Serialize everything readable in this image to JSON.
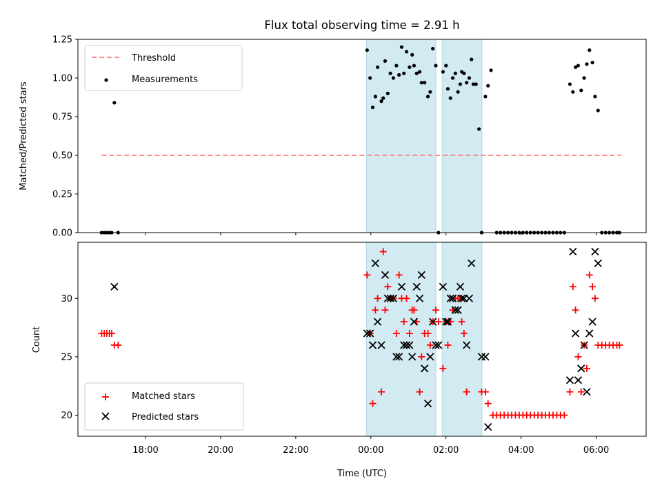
{
  "chart_data": [
    {
      "type": "scatter",
      "panel": "top",
      "title": "Flux total observing time = 2.91 h",
      "xlabel": "",
      "ylabel": "Matched/Predicted stars",
      "xlim": [
        16.2,
        31.33
      ],
      "ylim": [
        0,
        1.25
      ],
      "xticks": [
        18,
        20,
        22,
        24,
        26,
        28,
        30
      ],
      "yticks": [
        0,
        0.25,
        0.5,
        0.75,
        1.0,
        1.25
      ],
      "ytick_labels": [
        "0.00",
        "0.25",
        "0.50",
        "0.75",
        "1.00",
        "1.25"
      ],
      "legend": {
        "position": "top-left",
        "threshold_label": "Threshold",
        "measurements_label": "Measurements"
      },
      "threshold": {
        "value": 0.5,
        "x_range": [
          16.83,
          30.67
        ],
        "color": "#ff7f7f"
      },
      "observing_windows": [
        [
          23.88,
          25.73
        ],
        [
          25.9,
          26.96
        ]
      ],
      "window_color": "#add8e6",
      "measurements": [
        [
          16.83,
          0
        ],
        [
          16.9,
          0
        ],
        [
          16.97,
          0
        ],
        [
          17.04,
          0
        ],
        [
          17.1,
          0
        ],
        [
          17.17,
          0.84
        ],
        [
          17.27,
          0
        ],
        [
          23.9,
          1.18
        ],
        [
          23.98,
          1.0
        ],
        [
          24.05,
          0.81
        ],
        [
          24.12,
          0.88
        ],
        [
          24.18,
          1.07
        ],
        [
          24.28,
          0.85
        ],
        [
          24.33,
          0.87
        ],
        [
          24.38,
          1.11
        ],
        [
          24.45,
          0.9
        ],
        [
          24.52,
          1.03
        ],
        [
          24.6,
          1.0
        ],
        [
          24.68,
          1.08
        ],
        [
          24.75,
          1.02
        ],
        [
          24.82,
          1.2
        ],
        [
          24.88,
          1.03
        ],
        [
          24.95,
          1.17
        ],
        [
          25.03,
          1.07
        ],
        [
          25.1,
          1.15
        ],
        [
          25.15,
          1.08
        ],
        [
          25.22,
          1.03
        ],
        [
          25.3,
          1.04
        ],
        [
          25.35,
          0.97
        ],
        [
          25.43,
          0.97
        ],
        [
          25.52,
          0.88
        ],
        [
          25.58,
          0.91
        ],
        [
          25.65,
          1.19
        ],
        [
          25.73,
          1.08
        ],
        [
          25.8,
          0
        ],
        [
          25.92,
          1.04
        ],
        [
          26.0,
          1.08
        ],
        [
          26.05,
          0.93
        ],
        [
          26.12,
          0.87
        ],
        [
          26.18,
          1.0
        ],
        [
          26.25,
          1.03
        ],
        [
          26.32,
          0.91
        ],
        [
          26.38,
          0.96
        ],
        [
          26.42,
          1.04
        ],
        [
          26.48,
          1.03
        ],
        [
          26.55,
          0.97
        ],
        [
          26.62,
          1.0
        ],
        [
          26.68,
          1.12
        ],
        [
          26.73,
          0.96
        ],
        [
          26.8,
          0.96
        ],
        [
          26.88,
          0.67
        ],
        [
          26.95,
          0
        ],
        [
          27.05,
          0.88
        ],
        [
          27.12,
          0.95
        ],
        [
          27.2,
          1.05
        ],
        [
          27.35,
          0
        ],
        [
          27.45,
          0
        ],
        [
          27.55,
          0
        ],
        [
          27.65,
          0
        ],
        [
          27.75,
          0
        ],
        [
          27.85,
          0
        ],
        [
          27.95,
          0
        ],
        [
          28.05,
          0
        ],
        [
          28.15,
          0
        ],
        [
          28.25,
          0
        ],
        [
          28.35,
          0
        ],
        [
          28.45,
          0
        ],
        [
          28.55,
          0
        ],
        [
          28.65,
          0
        ],
        [
          28.75,
          0
        ],
        [
          28.85,
          0
        ],
        [
          28.95,
          0
        ],
        [
          29.05,
          0
        ],
        [
          29.15,
          0
        ],
        [
          29.3,
          0.96
        ],
        [
          29.38,
          0.91
        ],
        [
          29.45,
          1.07
        ],
        [
          29.52,
          1.08
        ],
        [
          29.6,
          0.92
        ],
        [
          29.68,
          1.0
        ],
        [
          29.75,
          1.09
        ],
        [
          29.82,
          1.18
        ],
        [
          29.9,
          1.1
        ],
        [
          29.97,
          0.88
        ],
        [
          30.05,
          0.79
        ],
        [
          30.15,
          0
        ],
        [
          30.25,
          0
        ],
        [
          30.35,
          0
        ],
        [
          30.45,
          0
        ],
        [
          30.55,
          0
        ],
        [
          30.62,
          0
        ]
      ]
    },
    {
      "type": "scatter",
      "panel": "bottom",
      "xlabel": "Time (UTC)",
      "ylabel": "Count",
      "xlim": [
        16.2,
        31.33
      ],
      "ylim": [
        18.2,
        34.8
      ],
      "xticks": [
        18,
        20,
        22,
        24,
        26,
        28,
        30
      ],
      "xtick_labels": [
        "18:00",
        "20:00",
        "22:00",
        "00:00",
        "02:00",
        "04:00",
        "06:00"
      ],
      "yticks": [
        20,
        25,
        30
      ],
      "legend": {
        "position": "bottom-left",
        "matched_label": "Matched stars",
        "predicted_label": "Predicted stars"
      },
      "observing_windows": [
        [
          23.88,
          25.73
        ],
        [
          25.9,
          26.96
        ]
      ],
      "series": [
        {
          "name": "Matched stars",
          "marker": "+",
          "color": "#ff0000",
          "points": [
            [
              16.83,
              27
            ],
            [
              16.9,
              27
            ],
            [
              16.97,
              27
            ],
            [
              17.04,
              27
            ],
            [
              17.1,
              27
            ],
            [
              17.17,
              26
            ],
            [
              17.27,
              26
            ],
            [
              23.9,
              32
            ],
            [
              23.98,
              27
            ],
            [
              24.05,
              21
            ],
            [
              24.12,
              29
            ],
            [
              24.18,
              30
            ],
            [
              24.28,
              22
            ],
            [
              24.33,
              34
            ],
            [
              24.38,
              29
            ],
            [
              24.45,
              31
            ],
            [
              24.52,
              30
            ],
            [
              24.6,
              30
            ],
            [
              24.68,
              27
            ],
            [
              24.75,
              32
            ],
            [
              24.82,
              30
            ],
            [
              24.88,
              28
            ],
            [
              24.95,
              30
            ],
            [
              25.03,
              27
            ],
            [
              25.1,
              29
            ],
            [
              25.15,
              29
            ],
            [
              25.22,
              28
            ],
            [
              25.3,
              22
            ],
            [
              25.35,
              25
            ],
            [
              25.43,
              27
            ],
            [
              25.52,
              27
            ],
            [
              25.58,
              26
            ],
            [
              25.65,
              28
            ],
            [
              25.73,
              29
            ],
            [
              25.8,
              28
            ],
            [
              25.92,
              24
            ],
            [
              26.0,
              28
            ],
            [
              26.05,
              26
            ],
            [
              26.12,
              28
            ],
            [
              26.18,
              29
            ],
            [
              26.25,
              30
            ],
            [
              26.32,
              30
            ],
            [
              26.38,
              30
            ],
            [
              26.42,
              28
            ],
            [
              26.48,
              27
            ],
            [
              26.55,
              22
            ],
            [
              26.95,
              22
            ],
            [
              27.05,
              22
            ],
            [
              27.12,
              21
            ],
            [
              27.25,
              20
            ],
            [
              27.35,
              20
            ],
            [
              27.45,
              20
            ],
            [
              27.55,
              20
            ],
            [
              27.65,
              20
            ],
            [
              27.75,
              20
            ],
            [
              27.85,
              20
            ],
            [
              27.95,
              20
            ],
            [
              28.05,
              20
            ],
            [
              28.15,
              20
            ],
            [
              28.25,
              20
            ],
            [
              28.35,
              20
            ],
            [
              28.45,
              20
            ],
            [
              28.55,
              20
            ],
            [
              28.65,
              20
            ],
            [
              28.75,
              20
            ],
            [
              28.85,
              20
            ],
            [
              28.95,
              20
            ],
            [
              29.05,
              20
            ],
            [
              29.15,
              20
            ],
            [
              29.3,
              22
            ],
            [
              29.38,
              31
            ],
            [
              29.45,
              29
            ],
            [
              29.52,
              25
            ],
            [
              29.6,
              22
            ],
            [
              29.68,
              26
            ],
            [
              29.75,
              24
            ],
            [
              29.82,
              32
            ],
            [
              29.9,
              31
            ],
            [
              29.97,
              30
            ],
            [
              30.05,
              26
            ],
            [
              30.15,
              26
            ],
            [
              30.25,
              26
            ],
            [
              30.35,
              26
            ],
            [
              30.45,
              26
            ],
            [
              30.55,
              26
            ],
            [
              30.62,
              26
            ]
          ]
        },
        {
          "name": "Predicted stars",
          "marker": "x",
          "color": "#000000",
          "points": [
            [
              17.17,
              31
            ],
            [
              23.9,
              27
            ],
            [
              23.98,
              27
            ],
            [
              24.05,
              26
            ],
            [
              24.12,
              33
            ],
            [
              24.18,
              28
            ],
            [
              24.28,
              26
            ],
            [
              24.38,
              32
            ],
            [
              24.45,
              30
            ],
            [
              24.52,
              30
            ],
            [
              24.6,
              30
            ],
            [
              24.68,
              25
            ],
            [
              24.75,
              25
            ],
            [
              24.82,
              31
            ],
            [
              24.88,
              26
            ],
            [
              24.95,
              26
            ],
            [
              25.03,
              26
            ],
            [
              25.1,
              25
            ],
            [
              25.15,
              28
            ],
            [
              25.22,
              31
            ],
            [
              25.3,
              30
            ],
            [
              25.35,
              32
            ],
            [
              25.43,
              24
            ],
            [
              25.52,
              21
            ],
            [
              25.58,
              25
            ],
            [
              25.65,
              28
            ],
            [
              25.73,
              26
            ],
            [
              25.8,
              26
            ],
            [
              25.92,
              31
            ],
            [
              26.0,
              28
            ],
            [
              26.05,
              28
            ],
            [
              26.12,
              30
            ],
            [
              26.18,
              30
            ],
            [
              26.25,
              29
            ],
            [
              26.32,
              29
            ],
            [
              26.38,
              31
            ],
            [
              26.42,
              30
            ],
            [
              26.48,
              30
            ],
            [
              26.55,
              26
            ],
            [
              26.62,
              30
            ],
            [
              26.68,
              33
            ],
            [
              26.95,
              25
            ],
            [
              27.05,
              25
            ],
            [
              27.12,
              19
            ],
            [
              29.3,
              23
            ],
            [
              29.38,
              34
            ],
            [
              29.45,
              27
            ],
            [
              29.52,
              23
            ],
            [
              29.6,
              24
            ],
            [
              29.68,
              26
            ],
            [
              29.75,
              22
            ],
            [
              29.82,
              27
            ],
            [
              29.9,
              28
            ],
            [
              29.97,
              34
            ],
            [
              30.05,
              33
            ]
          ]
        }
      ]
    }
  ]
}
